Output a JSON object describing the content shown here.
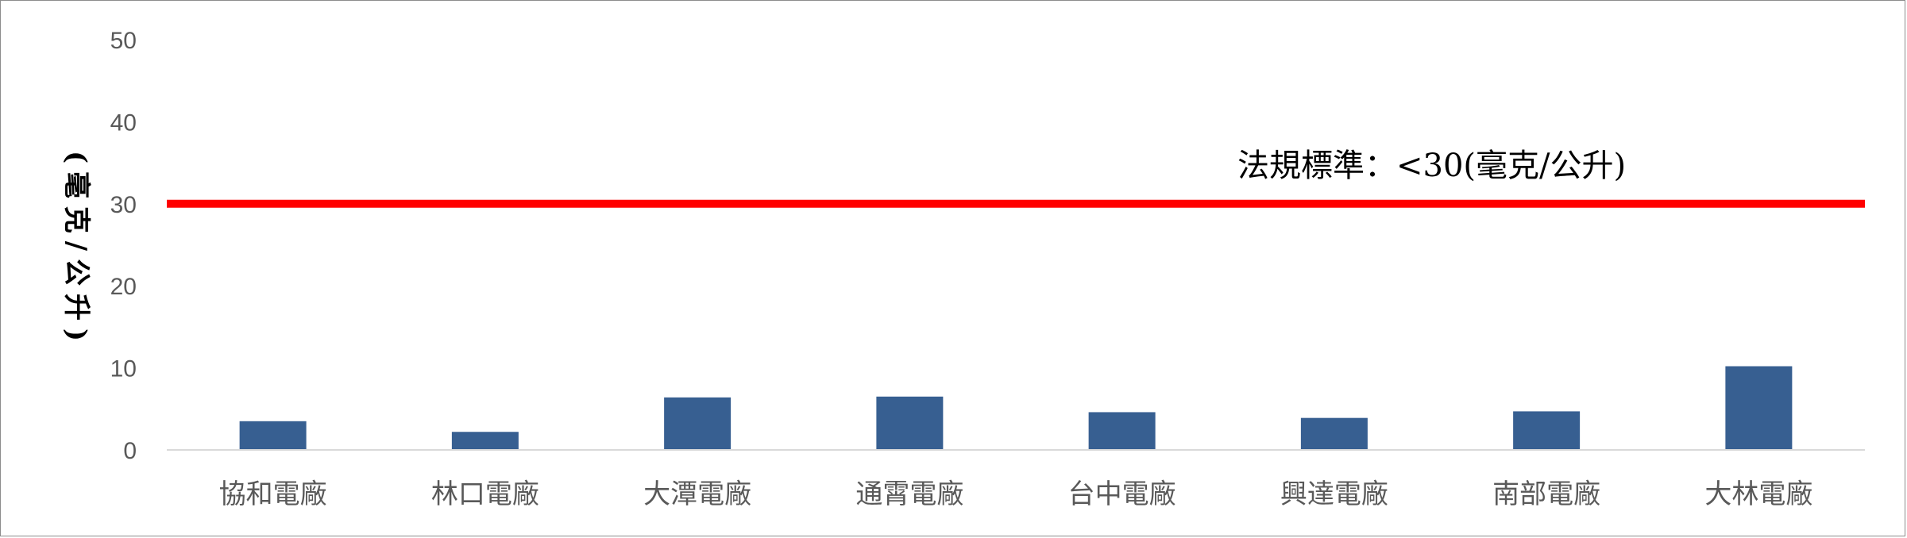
{
  "chart_data": {
    "type": "bar",
    "categories": [
      "協和電廠",
      "林口電廠",
      "大潭電廠",
      "通霄電廠",
      "台中電廠",
      "興達電廠",
      "南部電廠",
      "大林電廠"
    ],
    "values": [
      3.5,
      2.2,
      6.4,
      6.5,
      4.6,
      3.9,
      4.7,
      10.2
    ],
    "ylabel": "(毫克/公升)",
    "ylim": [
      0,
      50
    ],
    "yticks": [
      0,
      10,
      20,
      30,
      40,
      50
    ],
    "grid": false,
    "bar_color": "#375F91",
    "reference_line": {
      "value": 30,
      "label": "法規標準：<30(毫克/公升)",
      "color": "#FF0000"
    }
  }
}
